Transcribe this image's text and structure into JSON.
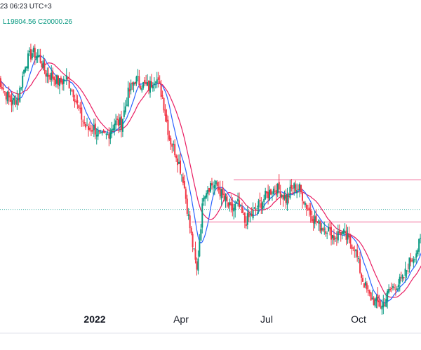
{
  "header": {
    "timestamp": "23 06:23 UTC+3",
    "ohlc": "L19804.56  C20000.26"
  },
  "colors": {
    "up": "#089981",
    "down": "#f23645",
    "ma_fast": "#2962ff",
    "ma_slow": "#e91e63",
    "hline": "#f06292",
    "dotted": "#4db6ac",
    "axis_border": "#e0e3eb",
    "text": "#131722"
  },
  "chart_data": {
    "type": "candlestick",
    "title": "",
    "xlabel": "",
    "ylabel": "",
    "x_ticks": [
      {
        "label": "2022",
        "year": true
      },
      {
        "label": "Apr",
        "year": false
      },
      {
        "label": "Jul",
        "year": false
      },
      {
        "label": "Oct",
        "year": false
      }
    ],
    "y_range": [
      15500,
      48500
    ],
    "price_at_2022_tick": 41500,
    "candles_per_month": 21,
    "month_px": 41.333,
    "x_start_month": 9.25,
    "levels": {
      "h_line_upper": 32200,
      "h_line_lower": 27500,
      "dotted_line": 28900
    },
    "closes_weekly": [
      43800,
      42000,
      40800,
      41500,
      45200,
      46400,
      45900,
      44100,
      43700,
      43000,
      43500,
      42000,
      39500,
      37800,
      38000,
      36900,
      37200,
      38600,
      38500,
      41800,
      43400,
      42900,
      42500,
      43800,
      41500,
      36900,
      35100,
      32400,
      26900,
      22000,
      30800,
      31700,
      31500,
      30000,
      28800,
      29500,
      27500,
      28300,
      29300,
      30300,
      31200,
      31100,
      30000,
      31400,
      31200,
      29300,
      28000,
      27000,
      26800,
      25800,
      26400,
      25500,
      24800,
      21500,
      19400,
      18600,
      18100,
      19700,
      20500,
      21000,
      23000,
      24200,
      26000
    ]
  }
}
